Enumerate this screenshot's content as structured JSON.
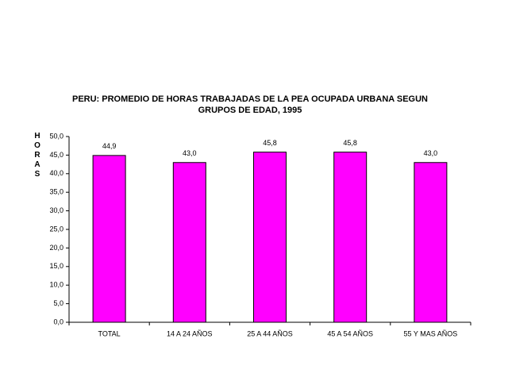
{
  "chart_data": {
    "type": "bar",
    "title": [
      "PERU: PROMEDIO DE HORAS TRABAJADAS DE LA PEA  OCUPADA URBANA SEGUN",
      "GRUPOS DE EDAD, 1995"
    ],
    "ylabel": "HORAS",
    "categories": [
      "TOTAL",
      "14 A 24 AÑOS",
      "25 A 44 AÑOS",
      "45 A 54 AÑOS",
      "55 Y MAS AÑOS"
    ],
    "values": [
      44.9,
      43.0,
      45.8,
      45.8,
      43.0
    ],
    "value_labels": [
      "44,9",
      "43,0",
      "45,8",
      "45,8",
      "43,0"
    ],
    "color": "#ff00ff",
    "ylim": [
      0,
      50
    ],
    "yticks": [
      {
        "value": 0,
        "label": "0,0"
      },
      {
        "value": 5,
        "label": "5,0"
      },
      {
        "value": 10,
        "label": "10,0"
      },
      {
        "value": 15,
        "label": "15,0"
      },
      {
        "value": 20,
        "label": "20,0"
      },
      {
        "value": 25,
        "label": "25,0"
      },
      {
        "value": 30,
        "label": "30,0"
      },
      {
        "value": 35,
        "label": "35,0"
      },
      {
        "value": 40,
        "label": "40,0"
      },
      {
        "value": 45,
        "label": "45,0"
      },
      {
        "value": 50,
        "label": "50,0"
      }
    ]
  }
}
